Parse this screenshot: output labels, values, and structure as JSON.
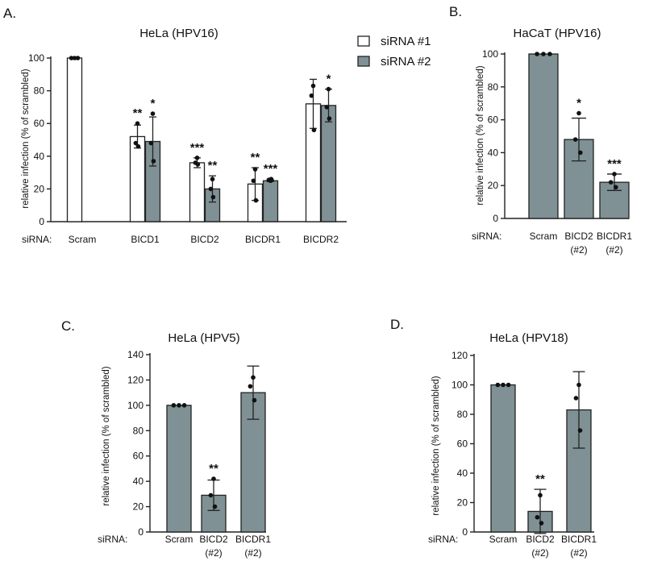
{
  "colors": {
    "sirna1": "#ffffff",
    "sirna2": "#7f9194",
    "ink": "#111111"
  },
  "chart_data": [
    {
      "id": "A",
      "letter": "A.",
      "type": "bar",
      "title": "HeLa (HPV16)",
      "ylabel": "relative infection (% of scrambled)",
      "ylim": [
        0,
        100
      ],
      "yticks": [
        0,
        20,
        40,
        60,
        80,
        100
      ],
      "row_label": "siRNA:",
      "categories": [
        "Scram",
        "BICD1",
        "BICD2",
        "BICDR1",
        "BICDR2"
      ],
      "legend": [
        "siRNA #1",
        "siRNA #2"
      ],
      "bars": [
        {
          "category": 0,
          "series": 0,
          "value": 100,
          "err": 0,
          "points": [
            100,
            100,
            100
          ],
          "sig": ""
        },
        {
          "category": 1,
          "series": 0,
          "value": 52,
          "err": 7,
          "points": [
            60,
            48,
            46
          ],
          "sig": "**"
        },
        {
          "category": 1,
          "series": 1,
          "value": 49,
          "err": 15,
          "points": [
            66,
            48,
            37
          ],
          "sig": "*"
        },
        {
          "category": 2,
          "series": 0,
          "value": 36,
          "err": 3,
          "points": [
            39,
            36,
            35
          ],
          "sig": "***"
        },
        {
          "category": 2,
          "series": 1,
          "value": 20,
          "err": 8,
          "points": [
            26,
            20,
            15
          ],
          "sig": "**"
        },
        {
          "category": 3,
          "series": 0,
          "value": 23,
          "err": 10,
          "points": [
            32,
            25,
            13
          ],
          "sig": "**"
        },
        {
          "category": 3,
          "series": 1,
          "value": 25,
          "err": 0.5,
          "points": [
            25,
            25.5,
            26
          ],
          "sig": "***"
        },
        {
          "category": 4,
          "series": 0,
          "value": 72,
          "err": 15,
          "points": [
            83,
            77,
            56
          ],
          "sig": ""
        },
        {
          "category": 4,
          "series": 1,
          "value": 71,
          "err": 10,
          "points": [
            81,
            70,
            63
          ],
          "sig": "*"
        }
      ]
    },
    {
      "id": "B",
      "letter": "B.",
      "type": "bar",
      "title": "HaCaT (HPV16)",
      "ylabel": "relative infection (% of scrambled)",
      "ylim": [
        0,
        100
      ],
      "yticks": [
        0,
        20,
        40,
        60,
        80,
        100
      ],
      "row_label": "siRNA:",
      "categories": [
        [
          "Scram"
        ],
        [
          "BICD2",
          "(#2)"
        ],
        [
          "BICDR1",
          "(#2)"
        ]
      ],
      "bars": [
        {
          "category": 0,
          "value": 100,
          "err": 0,
          "points": [
            100,
            100,
            100
          ],
          "sig": ""
        },
        {
          "category": 1,
          "value": 48,
          "err": 13,
          "points": [
            64,
            48,
            40
          ],
          "sig": "*"
        },
        {
          "category": 2,
          "value": 22,
          "err": 5,
          "points": [
            27,
            22,
            19
          ],
          "sig": "***"
        }
      ]
    },
    {
      "id": "C",
      "letter": "C.",
      "type": "bar",
      "title": "HeLa (HPV5)",
      "ylabel": "relative infection (% of scrambled)",
      "ylim": [
        0,
        140
      ],
      "yticks": [
        0,
        20,
        40,
        60,
        80,
        100,
        120,
        140
      ],
      "row_label": "siRNA:",
      "categories": [
        [
          "Scram"
        ],
        [
          "BICD2",
          "(#2)"
        ],
        [
          "BICDR1",
          "(#2)"
        ]
      ],
      "bars": [
        {
          "category": 0,
          "value": 100,
          "err": 0,
          "points": [
            100,
            100,
            100
          ],
          "sig": ""
        },
        {
          "category": 1,
          "value": 29,
          "err": 12,
          "points": [
            42,
            29,
            20
          ],
          "sig": "**"
        },
        {
          "category": 2,
          "value": 110,
          "err": 21,
          "points": [
            122,
            115,
            104
          ],
          "sig": ""
        }
      ]
    },
    {
      "id": "D",
      "letter": "D.",
      "type": "bar",
      "title": "HeLa (HPV18)",
      "ylabel": "relative infection (% of scrambled)",
      "ylim": [
        0,
        120
      ],
      "yticks": [
        0,
        20,
        40,
        60,
        80,
        100,
        120
      ],
      "row_label": "siRNA:",
      "categories": [
        [
          "Scram"
        ],
        [
          "BICD2",
          "(#2)"
        ],
        [
          "BICDR1",
          "(#2)"
        ]
      ],
      "bars": [
        {
          "category": 0,
          "value": 100,
          "err": 0,
          "points": [
            100,
            100,
            100
          ],
          "sig": ""
        },
        {
          "category": 1,
          "value": 14,
          "err": 15,
          "points": [
            25,
            10,
            6
          ],
          "sig": "**"
        },
        {
          "category": 2,
          "value": 83,
          "err": 26,
          "points": [
            100,
            91,
            69
          ],
          "sig": ""
        }
      ]
    }
  ]
}
